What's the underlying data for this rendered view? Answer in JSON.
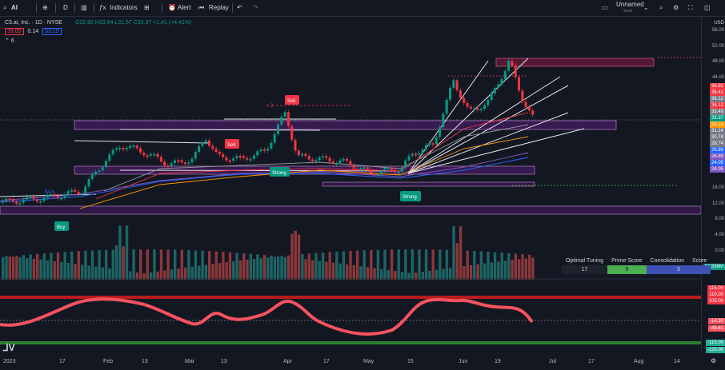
{
  "toolbar": {
    "symbol": "AI",
    "interval": "D",
    "indicators": "Indicators",
    "alert": "Alert",
    "replay": "Replay",
    "layout_name": "Unnamed",
    "layout_status": "Save"
  },
  "legend": {
    "title": "C3.ai, Inc. · 1D · NYSE",
    "ohlc": "O32.80 H33.84 L31.57 C33.37 +1.41 (+4.41%)",
    "price_a": "33.05",
    "spread": "0.14",
    "price_b": "33.19",
    "count": "6"
  },
  "currency": "USD",
  "price_axis": [
    "56.00",
    "52.00",
    "48.00",
    "44.00",
    "40.00",
    "36.00",
    "32.00",
    "28.00",
    "24.00",
    "20.00",
    "16.00",
    "12.00",
    "8.00",
    "4.00",
    "0.00"
  ],
  "price_tags": [
    {
      "v": "36.92",
      "c": "#f23645"
    },
    {
      "v": "36.41",
      "c": "#f23645"
    },
    {
      "v": "36.12",
      "c": "#787b86"
    },
    {
      "v": "36.12",
      "c": "#f23645"
    },
    {
      "v": "33.49",
      "c": "#787b86"
    },
    {
      "v": "33.37",
      "c": "#089981"
    },
    {
      "v": "33.10",
      "c": "#ff9800"
    },
    {
      "v": "31.14",
      "c": "#787b86"
    },
    {
      "v": "30.74",
      "c": "#787b86"
    },
    {
      "v": "28.74",
      "c": "#787b86"
    },
    {
      "v": "26.89",
      "c": "#2962ff"
    },
    {
      "v": "26.89",
      "c": "#7e57c2"
    },
    {
      "v": "24.05",
      "c": "#2962ff"
    },
    {
      "v": "24.05",
      "c": "#7e57c2"
    }
  ],
  "volume_tag": "24.559M",
  "osc_axis": [
    "115.00",
    "110.00",
    "105.00",
    "-14.30",
    "-49.61",
    "-115.00",
    "-120.00"
  ],
  "time_axis": [
    "2023",
    "17",
    "Feb",
    "13",
    "Mar",
    "13",
    "Apr",
    "17",
    "May",
    "15",
    "Jun",
    "19",
    "Jul",
    "17",
    "Aug",
    "14"
  ],
  "table": {
    "headers": [
      "Optimal Tuning",
      "Prime Score",
      "Consolidation",
      "Score"
    ],
    "values": [
      "17",
      "9",
      "3"
    ]
  },
  "labels": {
    "buy1": "BUY",
    "buy2": "Buy",
    "sell": "Sell",
    "sell2": "Sell",
    "strong1": "Strong",
    "strong2": "Strong",
    "x2": "x 2"
  }
}
